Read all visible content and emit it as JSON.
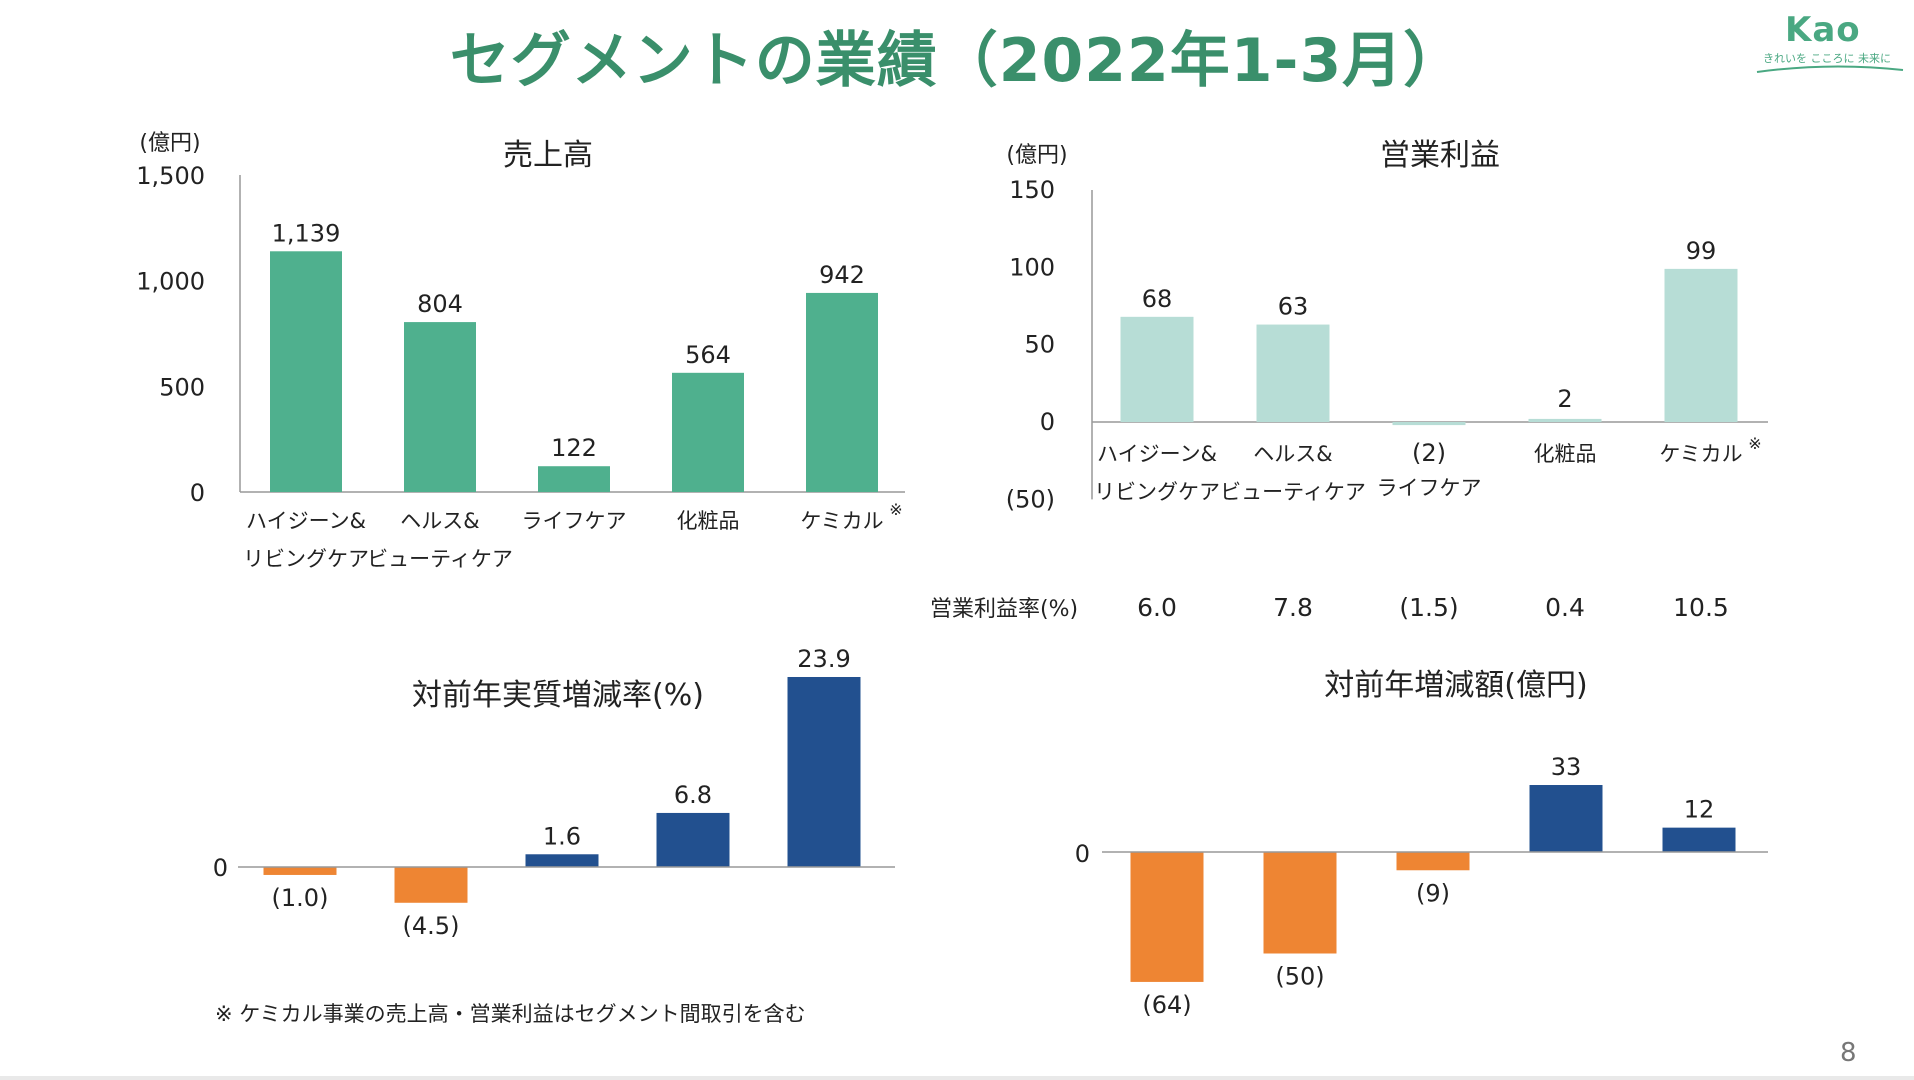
{
  "page": {
    "title": "セグメントの業績（2022年1-3月）",
    "logo_text": "Kao",
    "logo_tagline": "きれいを こころに 未来に",
    "footnote": "※ ケミカル事業の売上高・営業利益はセグメント間取引を含む",
    "page_number": "8"
  },
  "colors": {
    "sales_bar": "#4fb08e",
    "profit_bar": "#b7ddd6",
    "positive_bar": "#22508f",
    "negative_bar": "#ee8533",
    "title": "#3a8f6b"
  },
  "chart_data": [
    {
      "id": "sales",
      "type": "bar",
      "title": "売上高",
      "unit_label": "(億円)",
      "ylim": [
        0,
        1500
      ],
      "yticks": [
        "0",
        "500",
        "1,000",
        "1,500"
      ],
      "ytick_values": [
        0,
        500,
        1000,
        1500
      ],
      "categories": [
        [
          "ハイジーン&",
          "リビングケア"
        ],
        [
          "ヘルス&",
          "ビューティケア"
        ],
        [
          "ライフケア"
        ],
        [
          "化粧品"
        ],
        [
          "ケミカル"
        ]
      ],
      "category_marks": [
        "",
        "",
        "",
        "",
        "※"
      ],
      "values": [
        1139,
        804,
        122,
        564,
        942
      ],
      "value_labels": [
        "1,139",
        "804",
        "122",
        "564",
        "942"
      ]
    },
    {
      "id": "operating_income",
      "type": "bar",
      "title": "営業利益",
      "unit_label": "(億円)",
      "ylim": [
        -50,
        150
      ],
      "yticks": [
        "(50)",
        "0",
        "50",
        "100",
        "150"
      ],
      "ytick_values": [
        -50,
        0,
        50,
        100,
        150
      ],
      "categories": [
        [
          "ハイジーン&",
          "リビングケア"
        ],
        [
          "ヘルス&",
          "ビューティケア"
        ],
        [
          "ライフケア"
        ],
        [
          "化粧品"
        ],
        [
          "ケミカル"
        ]
      ],
      "category_marks": [
        "",
        "",
        "",
        "",
        "※"
      ],
      "values": [
        68,
        63,
        -2,
        2,
        99
      ],
      "value_labels": [
        "68",
        "63",
        "(2)",
        "2",
        "99"
      ],
      "margin_label": "営業利益率(%)",
      "margins": [
        "6.0",
        "7.8",
        "(1.5)",
        "0.4",
        "10.5"
      ]
    },
    {
      "id": "real_growth",
      "type": "bar",
      "title": "対前年実質増減率(%)",
      "ylim": [
        -7,
        24
      ],
      "zero_label": "0",
      "values": [
        -1.0,
        -4.5,
        1.6,
        6.8,
        23.9
      ],
      "value_labels": [
        "(1.0)",
        "(4.5)",
        "1.6",
        "6.8",
        "23.9"
      ]
    },
    {
      "id": "yoy_change",
      "type": "bar",
      "title": "対前年増減額(億円)",
      "ylim": [
        -64,
        33
      ],
      "zero_label": "0",
      "values": [
        -64,
        -50,
        -9,
        33,
        12
      ],
      "value_labels": [
        "(64)",
        "(50)",
        "(9)",
        "33",
        "12"
      ]
    }
  ]
}
